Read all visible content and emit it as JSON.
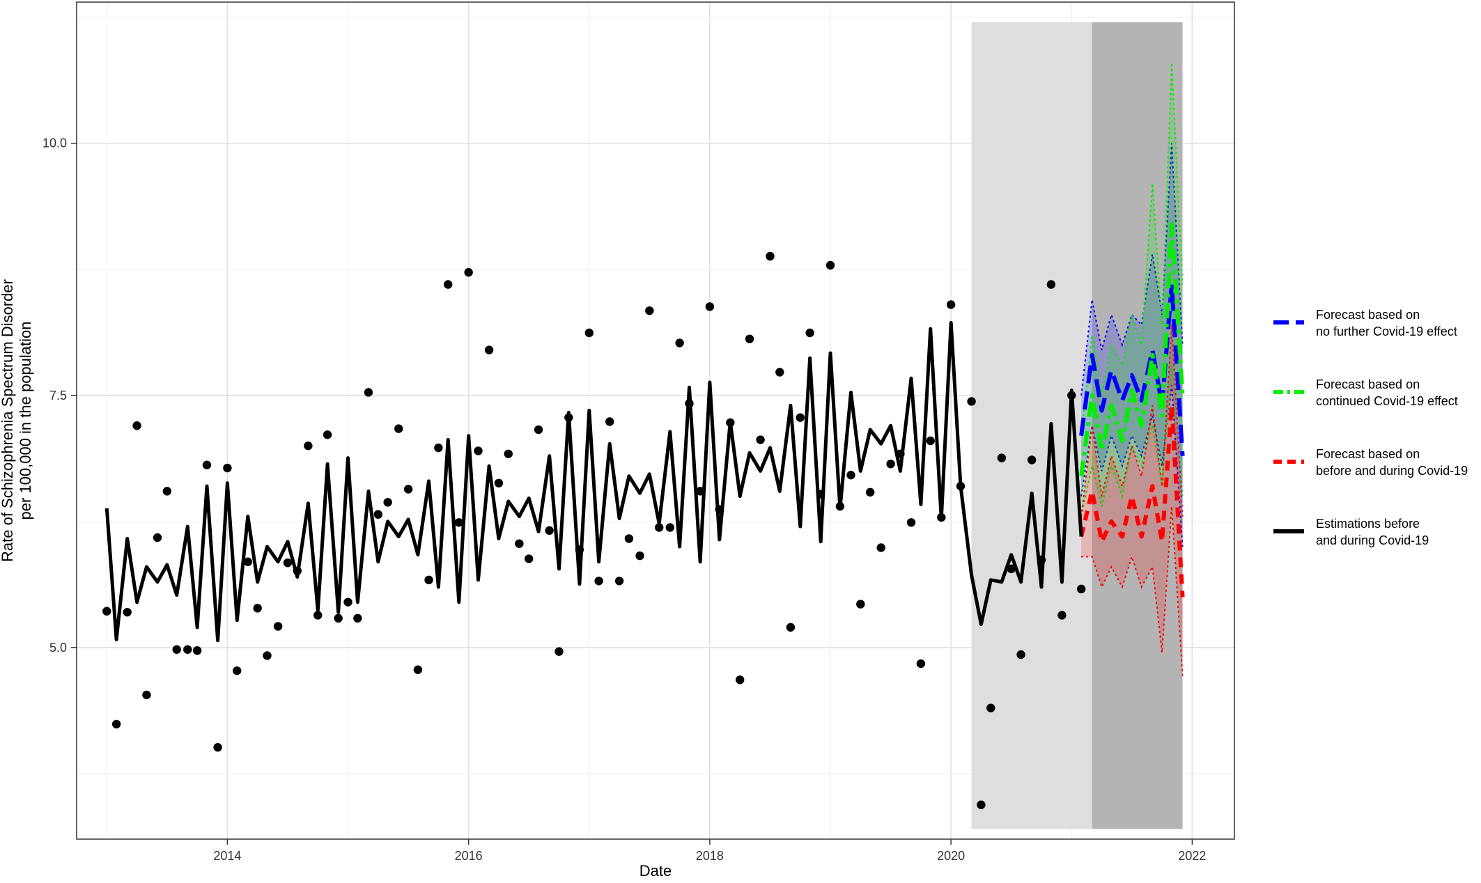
{
  "chart_data": {
    "type": "line",
    "xlabel": "Date",
    "ylabel_lines": [
      "Rate of Schizophrenia Spectrum Disorder",
      "per 100,000 in the population"
    ],
    "xlim": [
      2012.75,
      2022.35
    ],
    "ylim": [
      3.1,
      11.4
    ],
    "x_ticks": [
      2014,
      2016,
      2018,
      2020,
      2022
    ],
    "x_tick_labels": [
      "2014",
      "2016",
      "2018",
      "2020",
      "2022"
    ],
    "y_ticks": [
      5.0,
      7.5,
      10.0
    ],
    "y_tick_labels": [
      "5.0",
      "7.5",
      "10.0"
    ],
    "grid": true,
    "legend_position": "right",
    "shaded_regions": [
      {
        "x": [
          2020.17,
          2021.17
        ],
        "y": [
          3.2,
          11.2
        ],
        "color": "#dedede"
      },
      {
        "x": [
          2021.17,
          2021.92
        ],
        "y": [
          3.2,
          11.2
        ],
        "color": "#b4b4b4"
      }
    ],
    "observed_points": {
      "x": [
        2013.0,
        2013.08,
        2013.17,
        2013.25,
        2013.33,
        2013.42,
        2013.5,
        2013.58,
        2013.67,
        2013.75,
        2013.83,
        2013.92,
        2014.0,
        2014.08,
        2014.17,
        2014.25,
        2014.33,
        2014.42,
        2014.5,
        2014.58,
        2014.67,
        2014.75,
        2014.83,
        2014.92,
        2015.0,
        2015.08,
        2015.17,
        2015.25,
        2015.33,
        2015.42,
        2015.5,
        2015.58,
        2015.67,
        2015.75,
        2015.83,
        2015.92,
        2016.0,
        2016.08,
        2016.17,
        2016.25,
        2016.33,
        2016.42,
        2016.5,
        2016.58,
        2016.67,
        2016.75,
        2016.83,
        2016.92,
        2017.0,
        2017.08,
        2017.17,
        2017.25,
        2017.33,
        2017.42,
        2017.5,
        2017.58,
        2017.67,
        2017.75,
        2017.83,
        2017.92,
        2018.0,
        2018.08,
        2018.17,
        2018.25,
        2018.33,
        2018.42,
        2018.5,
        2018.58,
        2018.67,
        2018.75,
        2018.83,
        2018.92,
        2019.0,
        2019.08,
        2019.17,
        2019.25,
        2019.33,
        2019.42,
        2019.5,
        2019.58,
        2019.67,
        2019.75,
        2019.83,
        2019.92,
        2020.0,
        2020.08,
        2020.17,
        2020.25,
        2020.33,
        2020.42,
        2020.5,
        2020.58,
        2020.67,
        2020.75,
        2020.83,
        2020.92,
        2021.0,
        2021.08
      ],
      "y": [
        5.36,
        4.24,
        5.35,
        7.2,
        4.53,
        6.09,
        6.55,
        4.98,
        4.98,
        4.97,
        6.81,
        4.01,
        6.78,
        4.77,
        5.85,
        5.39,
        4.92,
        5.21,
        5.84,
        5.76,
        7.0,
        5.32,
        7.11,
        5.29,
        5.45,
        5.29,
        7.53,
        6.32,
        6.44,
        7.17,
        6.57,
        4.78,
        5.67,
        6.98,
        8.6,
        6.24,
        8.72,
        6.95,
        7.95,
        6.63,
        6.92,
        6.03,
        5.88,
        7.16,
        6.16,
        4.96,
        7.28,
        5.97,
        8.12,
        5.66,
        7.24,
        5.66,
        6.08,
        5.91,
        8.34,
        6.19,
        6.19,
        8.02,
        7.42,
        6.55,
        8.38,
        6.37,
        7.23,
        4.68,
        8.06,
        7.06,
        8.88,
        7.73,
        5.2,
        7.28,
        8.12,
        6.52,
        8.79,
        6.4,
        6.71,
        5.43,
        6.54,
        5.99,
        6.82,
        6.92,
        6.24,
        4.84,
        7.05,
        6.29,
        8.4,
        6.6,
        7.44,
        3.44,
        4.4,
        6.88,
        5.78,
        4.93,
        6.86,
        5.87,
        8.6,
        5.32,
        7.5,
        5.58
      ]
    },
    "series": [
      {
        "name": "Forecast based on no further Covid-19 effect",
        "color": "#0000ff",
        "dash": "long",
        "x": [
          2021.08,
          2021.17,
          2021.25,
          2021.33,
          2021.42,
          2021.5,
          2021.58,
          2021.67,
          2021.75,
          2021.83,
          2021.92
        ],
        "y": [
          7.1,
          7.9,
          7.35,
          7.75,
          7.45,
          7.7,
          7.45,
          7.95,
          7.4,
          8.6,
          6.9
        ],
        "lower": [
          6.5,
          7.2,
          6.75,
          7.1,
          6.8,
          7.1,
          6.9,
          7.3,
          6.8,
          7.6,
          6.0
        ],
        "upper": [
          7.5,
          8.45,
          7.95,
          8.3,
          8.0,
          8.3,
          8.2,
          8.9,
          8.3,
          10.0,
          8.0
        ]
      },
      {
        "name": "Forecast based on continued Covid-19 effect",
        "color": "#00ee00",
        "dash": "dashdot",
        "x": [
          2021.08,
          2021.17,
          2021.25,
          2021.33,
          2021.42,
          2021.5,
          2021.58,
          2021.67,
          2021.75,
          2021.83,
          2021.92
        ],
        "y": [
          6.7,
          7.5,
          6.95,
          7.4,
          7.05,
          7.55,
          7.2,
          7.9,
          7.3,
          9.2,
          7.5
        ],
        "lower": [
          6.3,
          6.8,
          6.4,
          6.8,
          6.5,
          7.0,
          6.8,
          7.2,
          6.6,
          7.8,
          6.5
        ],
        "upper": [
          7.1,
          8.1,
          7.5,
          8.0,
          7.8,
          8.3,
          8.0,
          9.6,
          8.2,
          10.8,
          8.6
        ]
      },
      {
        "name": "Forecast based on before and during Covid-19",
        "color": "#ff0000",
        "dash": "medium",
        "x": [
          2021.08,
          2021.17,
          2021.25,
          2021.33,
          2021.42,
          2021.5,
          2021.58,
          2021.67,
          2021.75,
          2021.83,
          2021.92
        ],
        "y": [
          6.1,
          6.55,
          6.05,
          6.25,
          6.1,
          6.5,
          6.1,
          6.6,
          6.05,
          7.4,
          5.5
        ],
        "lower": [
          5.9,
          5.9,
          5.6,
          5.8,
          5.6,
          5.9,
          5.6,
          5.8,
          4.95,
          6.4,
          4.72
        ],
        "upper": [
          6.3,
          7.2,
          6.5,
          6.9,
          6.6,
          7.0,
          6.7,
          7.4,
          6.6,
          8.2,
          6.3
        ]
      },
      {
        "name": "Estimations before and during Covid-19",
        "color": "#000000",
        "dash": "solid",
        "x": [
          2013.0,
          2013.08,
          2013.17,
          2013.25,
          2013.33,
          2013.42,
          2013.5,
          2013.58,
          2013.67,
          2013.75,
          2013.83,
          2013.92,
          2014.0,
          2014.08,
          2014.17,
          2014.25,
          2014.33,
          2014.42,
          2014.5,
          2014.58,
          2014.67,
          2014.75,
          2014.83,
          2014.92,
          2015.0,
          2015.08,
          2015.17,
          2015.25,
          2015.33,
          2015.42,
          2015.5,
          2015.58,
          2015.67,
          2015.75,
          2015.83,
          2015.92,
          2016.0,
          2016.08,
          2016.17,
          2016.25,
          2016.33,
          2016.42,
          2016.5,
          2016.58,
          2016.67,
          2016.75,
          2016.83,
          2016.92,
          2017.0,
          2017.08,
          2017.17,
          2017.25,
          2017.33,
          2017.42,
          2017.5,
          2017.58,
          2017.67,
          2017.75,
          2017.83,
          2017.92,
          2018.0,
          2018.08,
          2018.17,
          2018.25,
          2018.33,
          2018.42,
          2018.5,
          2018.58,
          2018.67,
          2018.75,
          2018.83,
          2018.92,
          2019.0,
          2019.08,
          2019.17,
          2019.25,
          2019.33,
          2019.42,
          2019.5,
          2019.58,
          2019.67,
          2019.75,
          2019.83,
          2019.92,
          2020.0,
          2020.08,
          2020.17,
          2020.25,
          2020.33,
          2020.42,
          2020.5,
          2020.58,
          2020.67,
          2020.75,
          2020.83,
          2020.92,
          2021.0,
          2021.08
        ],
        "y": [
          6.38,
          5.08,
          6.08,
          5.45,
          5.8,
          5.65,
          5.82,
          5.52,
          6.2,
          5.2,
          6.6,
          5.07,
          6.63,
          5.27,
          6.3,
          5.65,
          6.0,
          5.85,
          6.05,
          5.7,
          6.43,
          5.37,
          6.82,
          5.35,
          6.88,
          5.45,
          6.55,
          5.85,
          6.25,
          6.1,
          6.27,
          5.92,
          6.65,
          5.6,
          7.06,
          5.45,
          7.1,
          5.67,
          6.8,
          6.08,
          6.45,
          6.3,
          6.48,
          6.15,
          6.9,
          5.78,
          7.33,
          5.63,
          7.35,
          5.85,
          7.02,
          6.28,
          6.7,
          6.53,
          6.72,
          6.23,
          7.14,
          6.0,
          7.58,
          5.85,
          7.63,
          6.07,
          7.24,
          6.5,
          6.93,
          6.75,
          6.98,
          6.55,
          7.4,
          6.2,
          7.87,
          6.05,
          7.92,
          6.38,
          7.53,
          6.75,
          7.16,
          7.02,
          7.2,
          6.75,
          7.67,
          6.42,
          8.16,
          6.28,
          8.22,
          6.6,
          5.72,
          5.23,
          5.67,
          5.65,
          5.92,
          5.65,
          6.53,
          5.6,
          7.22,
          5.65,
          7.55,
          6.1
        ]
      }
    ],
    "legend": [
      {
        "line1": "Forecast based on",
        "line2": "no further Covid-19 effect",
        "color": "#0000ff",
        "dash": "long"
      },
      {
        "line1": "Forecast based on",
        "line2": "continued Covid-19 effect",
        "color": "#00ee00",
        "dash": "dashdot"
      },
      {
        "line1": "Forecast based on",
        "line2": "before and during Covid-19",
        "color": "#ff0000",
        "dash": "medium"
      },
      {
        "line1": "Estimations before",
        "line2": "and during Covid-19",
        "color": "#000000",
        "dash": "solid"
      }
    ]
  }
}
